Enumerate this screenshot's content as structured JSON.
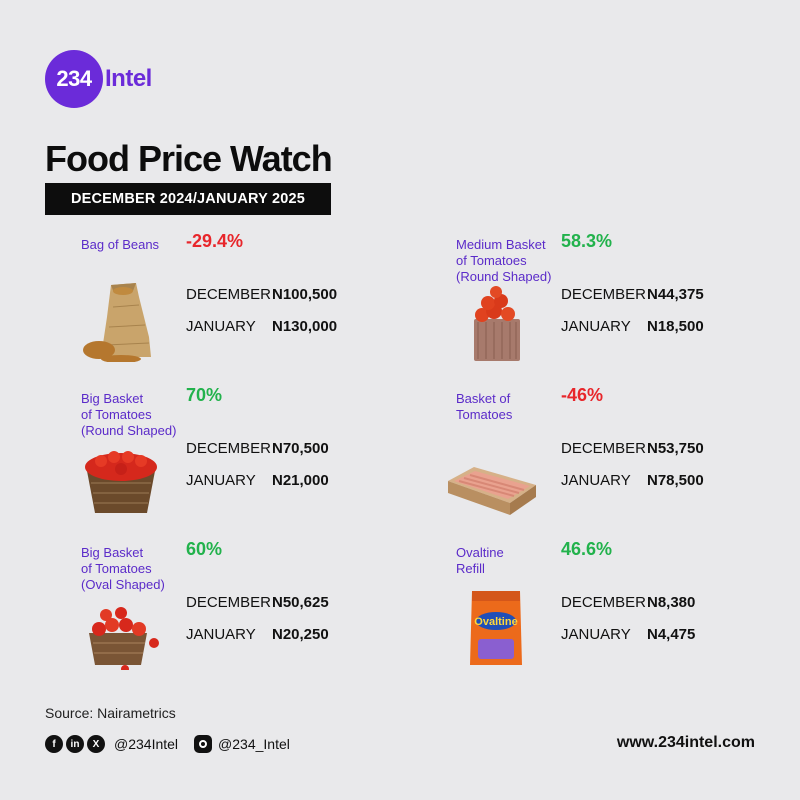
{
  "brand": {
    "number": "234",
    "word": "Intel"
  },
  "title": "Food Price Watch",
  "period": "DECEMBER 2024/JANUARY 2025",
  "month_labels": {
    "dec": "DECEMBER",
    "jan": "JANUARY"
  },
  "items": [
    {
      "name": "Bag of Beans",
      "change": "-29.4%",
      "dec": "N100,500",
      "jan": "N130,000",
      "icon": "beans-sack-icon"
    },
    {
      "name": "Medium Basket\nof Tomatoes\n(Round Shaped)",
      "change": "58.3%",
      "dec": "N44,375",
      "jan": "N18,500",
      "icon": "tomato-basket-icon"
    },
    {
      "name": "Big Basket\nof Tomatoes\n(Round Shaped)",
      "change": "70%",
      "dec": "N70,500",
      "jan": "N21,000",
      "icon": "tomato-basket-icon"
    },
    {
      "name": "Basket of\nTomatoes",
      "change": "-46%",
      "dec": "N53,750",
      "jan": "N78,500",
      "icon": "tomato-crate-icon"
    },
    {
      "name": "Big Basket\nof Tomatoes\n(Oval Shaped)",
      "change": "60%",
      "dec": "N50,625",
      "jan": "N20,250",
      "icon": "tomato-basket-icon"
    },
    {
      "name": "Ovaltine\nRefill",
      "change": "46.6%",
      "dec": "N8,380",
      "jan": "N4,475",
      "icon": "ovaltine-pack-icon"
    }
  ],
  "source": "Source: Nairametrics",
  "social": {
    "handle1": "@234Intel",
    "handle2": "@234_Intel"
  },
  "website": "www.234intel.com",
  "colors": {
    "brand": "#6b2bd9",
    "up": "#22b24c",
    "down": "#e8262b"
  }
}
